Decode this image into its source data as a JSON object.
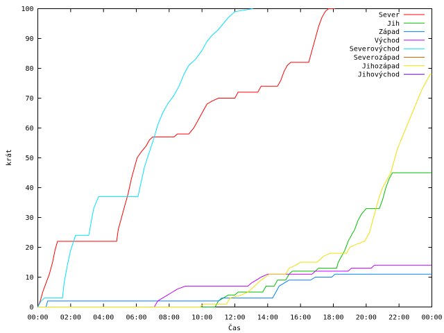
{
  "chart_data": {
    "type": "line",
    "xlabel": "Čas",
    "ylabel": "krát",
    "xlim": [
      0,
      24
    ],
    "ylim": [
      0,
      100
    ],
    "x_ticks": [
      {
        "x": 0,
        "label": "00:00"
      },
      {
        "x": 2,
        "label": "02:00"
      },
      {
        "x": 4,
        "label": "04:00"
      },
      {
        "x": 6,
        "label": "06:00"
      },
      {
        "x": 8,
        "label": "08:00"
      },
      {
        "x": 10,
        "label": "10:00"
      },
      {
        "x": 12,
        "label": "12:00"
      },
      {
        "x": 14,
        "label": "14:00"
      },
      {
        "x": 16,
        "label": "16:00"
      },
      {
        "x": 18,
        "label": "18:00"
      },
      {
        "x": 20,
        "label": "20:00"
      },
      {
        "x": 22,
        "label": "22:00"
      },
      {
        "x": 24,
        "label": "00:00"
      }
    ],
    "y_ticks": [
      {
        "y": 0,
        "label": "0"
      },
      {
        "y": 10,
        "label": "10"
      },
      {
        "y": 20,
        "label": "20"
      },
      {
        "y": 30,
        "label": "30"
      },
      {
        "y": 40,
        "label": "40"
      },
      {
        "y": 50,
        "label": "50"
      },
      {
        "y": 60,
        "label": "60"
      },
      {
        "y": 70,
        "label": "70"
      },
      {
        "y": 80,
        "label": "80"
      },
      {
        "y": 90,
        "label": "90"
      },
      {
        "y": 100,
        "label": "100"
      }
    ],
    "grid": false,
    "legend_position": "top-right",
    "series": [
      {
        "name": "Sever",
        "color": "#ff0000",
        "points": [
          [
            0,
            0
          ],
          [
            0.15,
            2
          ],
          [
            0.3,
            5
          ],
          [
            0.5,
            8
          ],
          [
            0.7,
            11
          ],
          [
            0.9,
            15
          ],
          [
            1.05,
            19
          ],
          [
            1.2,
            22
          ],
          [
            4.8,
            22
          ],
          [
            4.9,
            26
          ],
          [
            5.1,
            30
          ],
          [
            5.3,
            34
          ],
          [
            5.5,
            38
          ],
          [
            5.7,
            43
          ],
          [
            5.9,
            47
          ],
          [
            6.05,
            50
          ],
          [
            6.3,
            52
          ],
          [
            6.6,
            54
          ],
          [
            6.8,
            56
          ],
          [
            7.0,
            57
          ],
          [
            8.3,
            57
          ],
          [
            8.5,
            58
          ],
          [
            9.2,
            58
          ],
          [
            9.5,
            60
          ],
          [
            9.7,
            62
          ],
          [
            9.9,
            64
          ],
          [
            10.1,
            66
          ],
          [
            10.3,
            68
          ],
          [
            10.6,
            69
          ],
          [
            11.0,
            70
          ],
          [
            12.0,
            70
          ],
          [
            12.2,
            72
          ],
          [
            13.4,
            72
          ],
          [
            13.6,
            74
          ],
          [
            14.6,
            74
          ],
          [
            14.8,
            76
          ],
          [
            15.0,
            79
          ],
          [
            15.2,
            81
          ],
          [
            15.4,
            82
          ],
          [
            16.5,
            82
          ],
          [
            16.7,
            86
          ],
          [
            16.9,
            90
          ],
          [
            17.1,
            94
          ],
          [
            17.3,
            97
          ],
          [
            17.5,
            99
          ],
          [
            17.7,
            100
          ],
          [
            18.1,
            100
          ]
        ]
      },
      {
        "name": "Jih",
        "color": "#00c000",
        "points": [
          [
            0,
            0
          ],
          [
            10.8,
            0
          ],
          [
            11.0,
            2
          ],
          [
            11.3,
            3
          ],
          [
            11.6,
            4
          ],
          [
            12.0,
            4
          ],
          [
            12.2,
            5
          ],
          [
            13.7,
            5
          ],
          [
            13.9,
            7
          ],
          [
            14.4,
            7
          ],
          [
            14.6,
            9
          ],
          [
            15.1,
            9
          ],
          [
            15.3,
            11
          ],
          [
            15.5,
            12
          ],
          [
            16.9,
            12
          ],
          [
            17.1,
            13
          ],
          [
            18.2,
            13
          ],
          [
            18.3,
            15
          ],
          [
            18.5,
            17
          ],
          [
            18.7,
            19
          ],
          [
            18.9,
            22
          ],
          [
            19.1,
            24
          ],
          [
            19.3,
            26
          ],
          [
            19.5,
            29
          ],
          [
            19.7,
            31
          ],
          [
            20.0,
            33
          ],
          [
            20.8,
            33
          ],
          [
            21.0,
            36
          ],
          [
            21.2,
            40
          ],
          [
            21.4,
            43
          ],
          [
            21.6,
            45
          ],
          [
            24,
            45
          ]
        ]
      },
      {
        "name": "Západ",
        "color": "#0080ff",
        "points": [
          [
            0,
            0
          ],
          [
            0.5,
            0
          ],
          [
            0.6,
            2
          ],
          [
            11.0,
            2
          ],
          [
            11.2,
            3
          ],
          [
            14.3,
            3
          ],
          [
            14.5,
            5
          ],
          [
            14.7,
            7
          ],
          [
            15.0,
            8
          ],
          [
            15.3,
            9
          ],
          [
            16.6,
            9
          ],
          [
            16.9,
            10
          ],
          [
            17.9,
            10
          ],
          [
            18.1,
            11
          ],
          [
            24,
            11
          ]
        ]
      },
      {
        "name": "Východ",
        "color": "#c000ff",
        "points": [
          [
            0,
            0
          ],
          [
            7.1,
            0
          ],
          [
            7.3,
            2
          ],
          [
            7.6,
            3
          ],
          [
            7.9,
            4
          ],
          [
            8.2,
            5
          ],
          [
            8.5,
            6
          ],
          [
            9.0,
            7
          ],
          [
            12.8,
            7
          ],
          [
            13.0,
            8
          ],
          [
            13.3,
            9
          ],
          [
            13.6,
            10
          ],
          [
            14.0,
            11
          ],
          [
            16.7,
            11
          ],
          [
            16.9,
            12
          ],
          [
            18.9,
            12
          ],
          [
            19.1,
            13
          ],
          [
            20.3,
            13
          ],
          [
            20.5,
            14
          ],
          [
            24,
            14
          ]
        ]
      },
      {
        "name": "Severovýchod",
        "color": "#00e0ff",
        "points": [
          [
            0,
            0
          ],
          [
            0.2,
            2
          ],
          [
            0.4,
            3
          ],
          [
            1.5,
            3
          ],
          [
            1.6,
            8
          ],
          [
            1.8,
            14
          ],
          [
            2.0,
            19
          ],
          [
            2.3,
            24
          ],
          [
            3.1,
            24
          ],
          [
            3.4,
            33
          ],
          [
            3.7,
            37
          ],
          [
            6.1,
            37
          ],
          [
            6.3,
            42
          ],
          [
            6.5,
            47
          ],
          [
            6.8,
            52
          ],
          [
            7.1,
            57
          ],
          [
            7.3,
            61
          ],
          [
            7.6,
            65
          ],
          [
            7.9,
            68
          ],
          [
            8.3,
            71
          ],
          [
            8.6,
            74
          ],
          [
            8.9,
            78
          ],
          [
            9.2,
            81
          ],
          [
            9.6,
            83
          ],
          [
            10.0,
            86
          ],
          [
            10.3,
            89
          ],
          [
            10.6,
            91
          ],
          [
            11.0,
            93
          ],
          [
            11.3,
            95
          ],
          [
            11.6,
            97
          ],
          [
            12.0,
            99
          ],
          [
            13.1,
            100
          ]
        ]
      },
      {
        "name": "Severozápad",
        "color": "#e06000",
        "points": []
      },
      {
        "name": "Jihozápad",
        "color": "#f0e000",
        "points": [
          [
            0,
            0
          ],
          [
            9.9,
            0
          ],
          [
            10.1,
            1
          ],
          [
            11.5,
            1
          ],
          [
            11.7,
            3
          ],
          [
            12.4,
            4
          ],
          [
            12.8,
            5
          ],
          [
            13.2,
            7
          ],
          [
            13.6,
            9
          ],
          [
            14.1,
            11
          ],
          [
            15.1,
            11
          ],
          [
            15.3,
            13
          ],
          [
            15.7,
            14
          ],
          [
            16.0,
            15
          ],
          [
            17.0,
            15
          ],
          [
            17.2,
            16
          ],
          [
            17.4,
            17
          ],
          [
            17.8,
            18
          ],
          [
            18.8,
            18
          ],
          [
            19.0,
            20
          ],
          [
            19.4,
            21
          ],
          [
            19.9,
            22
          ],
          [
            20.2,
            25
          ],
          [
            20.4,
            29
          ],
          [
            20.6,
            33
          ],
          [
            20.8,
            37
          ],
          [
            21.0,
            40
          ],
          [
            21.3,
            43
          ],
          [
            21.5,
            45
          ],
          [
            21.7,
            49
          ],
          [
            21.9,
            53
          ],
          [
            22.2,
            57
          ],
          [
            22.5,
            61
          ],
          [
            22.8,
            65
          ],
          [
            23.1,
            69
          ],
          [
            23.4,
            73
          ],
          [
            23.7,
            76
          ],
          [
            23.9,
            78
          ],
          [
            24,
            78
          ]
        ]
      },
      {
        "name": "Jihovýchod",
        "color": "#6000c0",
        "points": []
      }
    ]
  }
}
